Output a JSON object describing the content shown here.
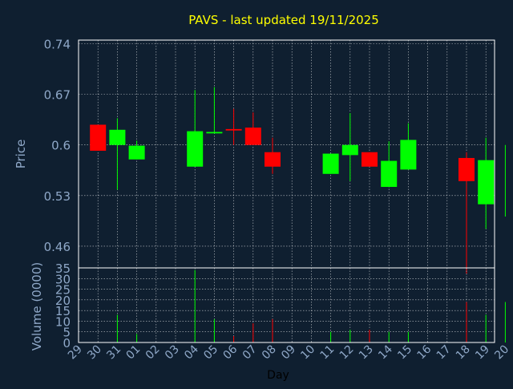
{
  "colors": {
    "background": "#0f1f30",
    "frame": "#ffffff",
    "grid": "#ffffff",
    "title": "#ffff00",
    "axis_text": "#8fa8c8",
    "day_label": "#000000",
    "up": "#00ff00",
    "down": "#ff0000"
  },
  "chart_data": [
    {
      "type": "candlestick",
      "title": "PAVS - last updated 19/11/2025",
      "ylabel": "Price",
      "ylim": [
        0.43,
        0.745
      ],
      "yticks": [
        "0.74",
        "0.67",
        "0.6",
        "0.53",
        "0.46"
      ],
      "ytick_values": [
        0.74,
        0.67,
        0.6,
        0.53,
        0.46
      ],
      "grid": true,
      "categories": [
        "29",
        "30",
        "31",
        "01",
        "02",
        "03",
        "04",
        "05",
        "06",
        "07",
        "08",
        "09",
        "10",
        "11",
        "12",
        "13",
        "14",
        "15",
        "16",
        "17",
        "18",
        "19",
        "20"
      ],
      "candles": [
        {
          "x": 0,
          "open": 0.592,
          "close": 0.628,
          "high": 0.628,
          "low": 0.592,
          "dir": "down"
        },
        {
          "x": 1,
          "open": 0.6,
          "close": 0.621,
          "high": 0.637,
          "low": 0.538,
          "dir": "up"
        },
        {
          "x": 2,
          "open": 0.58,
          "close": 0.599,
          "high": 0.606,
          "low": 0.58,
          "dir": "up"
        },
        {
          "x": 5,
          "open": 0.57,
          "close": 0.619,
          "high": 0.676,
          "low": 0.57,
          "dir": "up"
        },
        {
          "x": 6,
          "open": 0.616,
          "close": 0.618,
          "high": 0.68,
          "low": 0.616,
          "dir": "up"
        },
        {
          "x": 7,
          "open": 0.62,
          "close": 0.622,
          "high": 0.65,
          "low": 0.6,
          "dir": "down"
        },
        {
          "x": 8,
          "open": 0.624,
          "close": 0.6,
          "high": 0.645,
          "low": 0.6,
          "dir": "down"
        },
        {
          "x": 9,
          "open": 0.59,
          "close": 0.57,
          "high": 0.61,
          "low": 0.56,
          "dir": "down"
        },
        {
          "x": 12,
          "open": 0.56,
          "close": 0.588,
          "high": 0.588,
          "low": 0.56,
          "dir": "up"
        },
        {
          "x": 13,
          "open": 0.586,
          "close": 0.6,
          "high": 0.644,
          "low": 0.55,
          "dir": "up"
        },
        {
          "x": 14,
          "open": 0.59,
          "close": 0.57,
          "high": 0.59,
          "low": 0.57,
          "dir": "down"
        },
        {
          "x": 15,
          "open": 0.542,
          "close": 0.578,
          "high": 0.605,
          "low": 0.542,
          "dir": "up"
        },
        {
          "x": 16,
          "open": 0.566,
          "close": 0.607,
          "high": 0.63,
          "low": 0.566,
          "dir": "up"
        },
        {
          "x": 19,
          "open": 0.582,
          "close": 0.55,
          "high": 0.59,
          "low": 0.422,
          "dir": "down"
        },
        {
          "x": 20,
          "open": 0.518,
          "close": 0.579,
          "high": 0.61,
          "low": 0.484,
          "dir": "up"
        },
        {
          "x": 21,
          "open": 0.55,
          "close": 0.566,
          "high": 0.6,
          "low": 0.501,
          "dir": "up"
        }
      ]
    },
    {
      "type": "bar",
      "ylabel": "Volume (0000)",
      "xlabel": "Day",
      "ylim": [
        0,
        35
      ],
      "yticks": [
        "35",
        "30",
        "25",
        "20",
        "15",
        "10",
        "5",
        "0"
      ],
      "ytick_values": [
        35,
        30,
        25,
        20,
        15,
        10,
        5,
        0
      ],
      "categories": [
        "29",
        "30",
        "31",
        "01",
        "02",
        "03",
        "04",
        "05",
        "06",
        "07",
        "08",
        "09",
        "10",
        "11",
        "12",
        "13",
        "14",
        "15",
        "16",
        "17",
        "18",
        "19",
        "20"
      ],
      "volumes": [
        {
          "x": 1,
          "value": 13,
          "dir": "up"
        },
        {
          "x": 2,
          "value": 4,
          "dir": "up"
        },
        {
          "x": 5,
          "value": 34,
          "dir": "up"
        },
        {
          "x": 6,
          "value": 11,
          "dir": "up"
        },
        {
          "x": 7,
          "value": 3,
          "dir": "down"
        },
        {
          "x": 8,
          "value": 9,
          "dir": "down"
        },
        {
          "x": 9,
          "value": 11,
          "dir": "down"
        },
        {
          "x": 12,
          "value": 5,
          "dir": "up"
        },
        {
          "x": 13,
          "value": 6,
          "dir": "up"
        },
        {
          "x": 14,
          "value": 6,
          "dir": "down"
        },
        {
          "x": 15,
          "value": 5,
          "dir": "up"
        },
        {
          "x": 16,
          "value": 5,
          "dir": "up"
        },
        {
          "x": 19,
          "value": 19,
          "dir": "down"
        },
        {
          "x": 20,
          "value": 13,
          "dir": "up"
        },
        {
          "x": 21,
          "value": 19,
          "dir": "up"
        }
      ]
    }
  ]
}
